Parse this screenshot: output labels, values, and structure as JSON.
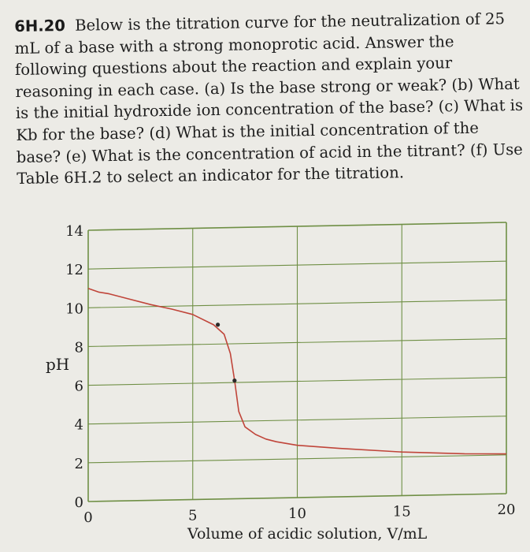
{
  "problem": {
    "number": "6H.20",
    "text": "Below is the titration curve for the neutralization of 25 mL of a base with a strong monoprotic acid. Answer the following questions about the reaction and explain your reasoning in each case. (a) Is the base strong or weak? (b) What is the initial hydroxide ion concentration of the base? (c) What is Kb for the base? (d) What is the initial concentration of the base? (e) What is the concentration of acid in the titrant? (f) Use Table 6H.2 to select an indicator for the titration."
  },
  "colors": {
    "background": "#ecebe6",
    "grid": "#6f8f45",
    "curve": "#c0453a",
    "text": "#1e1e1e"
  },
  "chart_data": {
    "type": "line",
    "xlabel": "Volume of acidic solution, V/mL",
    "ylabel": "pH",
    "xlim": [
      0,
      20
    ],
    "ylim": [
      0,
      14
    ],
    "xticks": [
      0,
      5,
      10,
      15,
      20
    ],
    "yticks": [
      0,
      2,
      4,
      6,
      8,
      10,
      12,
      14
    ],
    "grid": true,
    "series": [
      {
        "x": [
          0,
          0.5,
          1,
          2,
          3,
          4,
          5,
          6,
          6.5,
          6.8,
          7,
          7.2,
          7.5,
          8,
          8.5,
          9,
          10,
          12,
          15,
          18,
          20
        ],
        "y": [
          11.0,
          10.8,
          10.7,
          10.4,
          10.1,
          9.85,
          9.55,
          9.0,
          8.5,
          7.5,
          6.1,
          4.5,
          3.7,
          3.3,
          3.05,
          2.9,
          2.7,
          2.5,
          2.25,
          2.1,
          2.05
        ]
      }
    ],
    "markers": [
      {
        "x": 6.2,
        "y": 9.0
      },
      {
        "x": 7.0,
        "y": 6.1
      }
    ]
  }
}
